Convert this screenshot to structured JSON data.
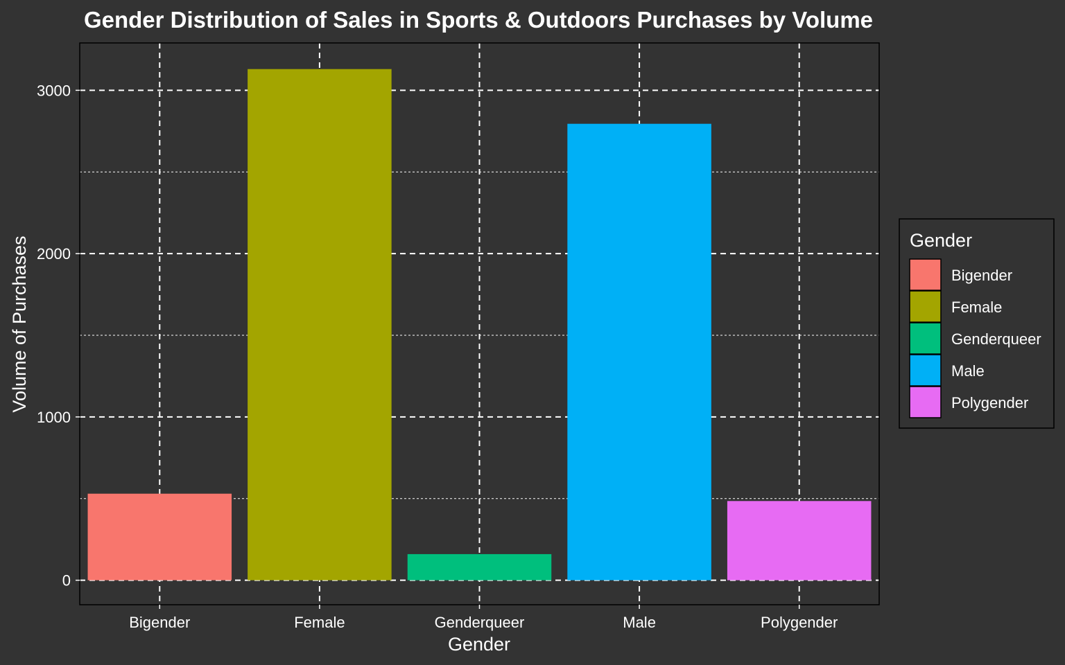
{
  "chart_data": {
    "type": "bar",
    "title": "Gender Distribution of Sales in Sports & Outdoors Purchases by Volume",
    "xlabel": "Gender",
    "ylabel": "Volume of Purchases",
    "categories": [
      "Bigender",
      "Female",
      "Genderqueer",
      "Male",
      "Polygender"
    ],
    "values": [
      530,
      3130,
      160,
      2795,
      485
    ],
    "colors": [
      "#F8766D",
      "#A3A500",
      "#00BF7D",
      "#00B0F6",
      "#E76BF3"
    ],
    "ylim": [
      -150,
      3290
    ],
    "yticks": [
      0,
      1000,
      2000,
      3000
    ],
    "ytick_labels": [
      "0",
      "1000",
      "2000",
      "3000"
    ],
    "y_minor_ticks": [
      500,
      1500,
      2500
    ],
    "grid": true,
    "legend": {
      "title": "Gender",
      "placement": "right",
      "entries": [
        "Bigender",
        "Female",
        "Genderqueer",
        "Male",
        "Polygender"
      ]
    }
  }
}
